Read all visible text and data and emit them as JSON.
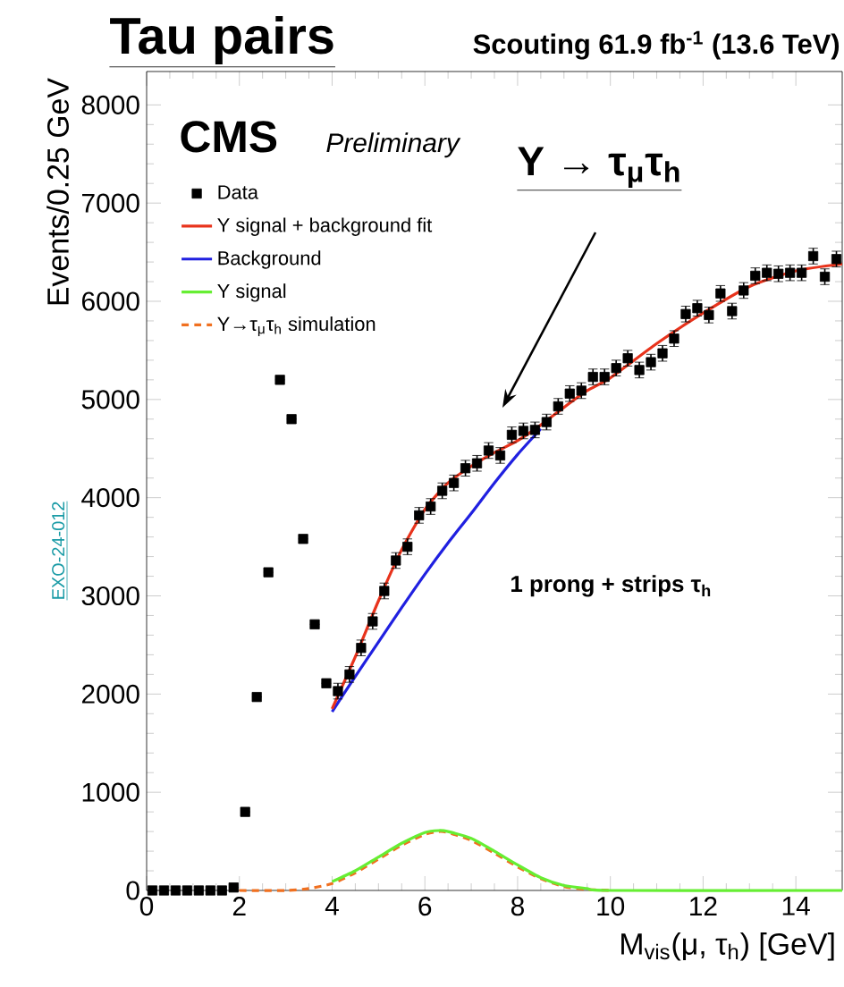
{
  "chart_data": {
    "type": "line",
    "title": "Tau pairs",
    "subtitle": "Scouting 61.9 fb$^{-1}$ (13.6 TeV)",
    "xlabel": "M$_{vis}$(μ, τ$_{h}$) [GeV]",
    "ylabel": "Events/0.25 GeV",
    "xlim": [
      0,
      15
    ],
    "ylim": [
      0,
      8340
    ],
    "xticks": [
      0,
      2,
      4,
      6,
      8,
      10,
      12,
      14
    ],
    "yticks": [
      0,
      1000,
      2000,
      3000,
      4000,
      5000,
      6000,
      7000,
      8000
    ],
    "legend": "top left",
    "annotations": [
      "CMS",
      "Preliminary",
      "Υ → τ$_{μ}$τ$_{h}$",
      "1 prong + strips τ$_{h}$",
      "EXO-24-012"
    ],
    "series": [
      {
        "name": "Data",
        "type": "scatter",
        "marker": "square",
        "color": "#000000",
        "x": [
          0.125,
          0.375,
          0.625,
          0.875,
          1.125,
          1.375,
          1.625,
          1.875,
          2.125,
          2.375,
          2.625,
          2.875,
          3.125,
          3.375,
          3.625,
          3.875,
          4.125,
          4.375,
          4.625,
          4.875,
          5.125,
          5.375,
          5.625,
          5.875,
          6.125,
          6.375,
          6.625,
          6.875,
          7.125,
          7.375,
          7.625,
          7.875,
          8.125,
          8.375,
          8.625,
          8.875,
          9.125,
          9.375,
          9.625,
          9.875,
          10.125,
          10.375,
          10.625,
          10.875,
          11.125,
          11.375,
          11.625,
          11.875,
          12.125,
          12.375,
          12.625,
          12.875,
          13.125,
          13.375,
          13.625,
          13.875,
          14.125,
          14.375,
          14.625,
          14.875
        ],
        "values": [
          0,
          0,
          0,
          0,
          0,
          0,
          0,
          30,
          800,
          1970,
          3240,
          5200,
          4800,
          3580,
          2710,
          2110,
          2030,
          2200,
          2470,
          2740,
          3050,
          3360,
          3500,
          3820,
          3910,
          4070,
          4150,
          4300,
          4350,
          4480,
          4430,
          4640,
          4680,
          4690,
          4770,
          4930,
          5060,
          5090,
          5230,
          5230,
          5320,
          5420,
          5300,
          5380,
          5470,
          5620,
          5870,
          5930,
          5860,
          6080,
          5900,
          6110,
          6260,
          6290,
          6280,
          6290,
          6290,
          6460,
          6250,
          6430
        ],
        "errors": [
          null,
          null,
          null,
          null,
          null,
          null,
          null,
          null,
          null,
          null,
          null,
          null,
          null,
          null,
          null,
          null,
          80,
          80,
          80,
          80,
          80,
          80,
          80,
          80,
          80,
          80,
          80,
          80,
          80,
          80,
          80,
          80,
          80,
          80,
          80,
          80,
          80,
          80,
          80,
          80,
          80,
          80,
          80,
          80,
          80,
          80,
          80,
          80,
          80,
          80,
          80,
          80,
          80,
          80,
          80,
          80,
          80,
          80,
          80,
          80
        ]
      },
      {
        "name": "Υ signal + background fit",
        "color": "#e8331c",
        "x": [
          4,
          4.5,
          5,
          5.5,
          6,
          6.5,
          7,
          7.5,
          8,
          8.5,
          9,
          9.5,
          10,
          11,
          12,
          13,
          14,
          15
        ],
        "values": [
          1850,
          2380,
          2950,
          3470,
          3880,
          4150,
          4320,
          4460,
          4580,
          4740,
          4920,
          5090,
          5220,
          5570,
          5880,
          6150,
          6310,
          6380
        ]
      },
      {
        "name": "Background",
        "color": "#2020e0",
        "x": [
          4,
          4.5,
          5,
          5.5,
          6,
          6.5,
          7,
          7.5,
          8,
          8.5
        ],
        "values": [
          1820,
          2180,
          2530,
          2880,
          3220,
          3540,
          3840,
          4150,
          4440,
          4700
        ]
      },
      {
        "name": "Υ signal",
        "color": "#66ee33",
        "x": [
          4,
          4.5,
          5,
          5.5,
          6,
          6.3,
          6.5,
          7,
          7.5,
          8,
          8.5,
          9,
          9.5,
          10,
          15
        ],
        "values": [
          90,
          200,
          340,
          480,
          590,
          610,
          600,
          530,
          400,
          260,
          130,
          50,
          20,
          0,
          0
        ]
      },
      {
        "name": "Υ→τ$_{μ}$τ$_{h}$ simulation",
        "line_style": "dashed",
        "color": "#f07020",
        "x": [
          2,
          3,
          3.5,
          4,
          4.5,
          5,
          5.5,
          6,
          6.3,
          6.5,
          7,
          7.5,
          8,
          8.5,
          9,
          9.5,
          10
        ],
        "values": [
          0,
          0,
          20,
          70,
          180,
          320,
          460,
          570,
          600,
          590,
          510,
          380,
          240,
          120,
          40,
          10,
          0
        ]
      }
    ]
  }
}
